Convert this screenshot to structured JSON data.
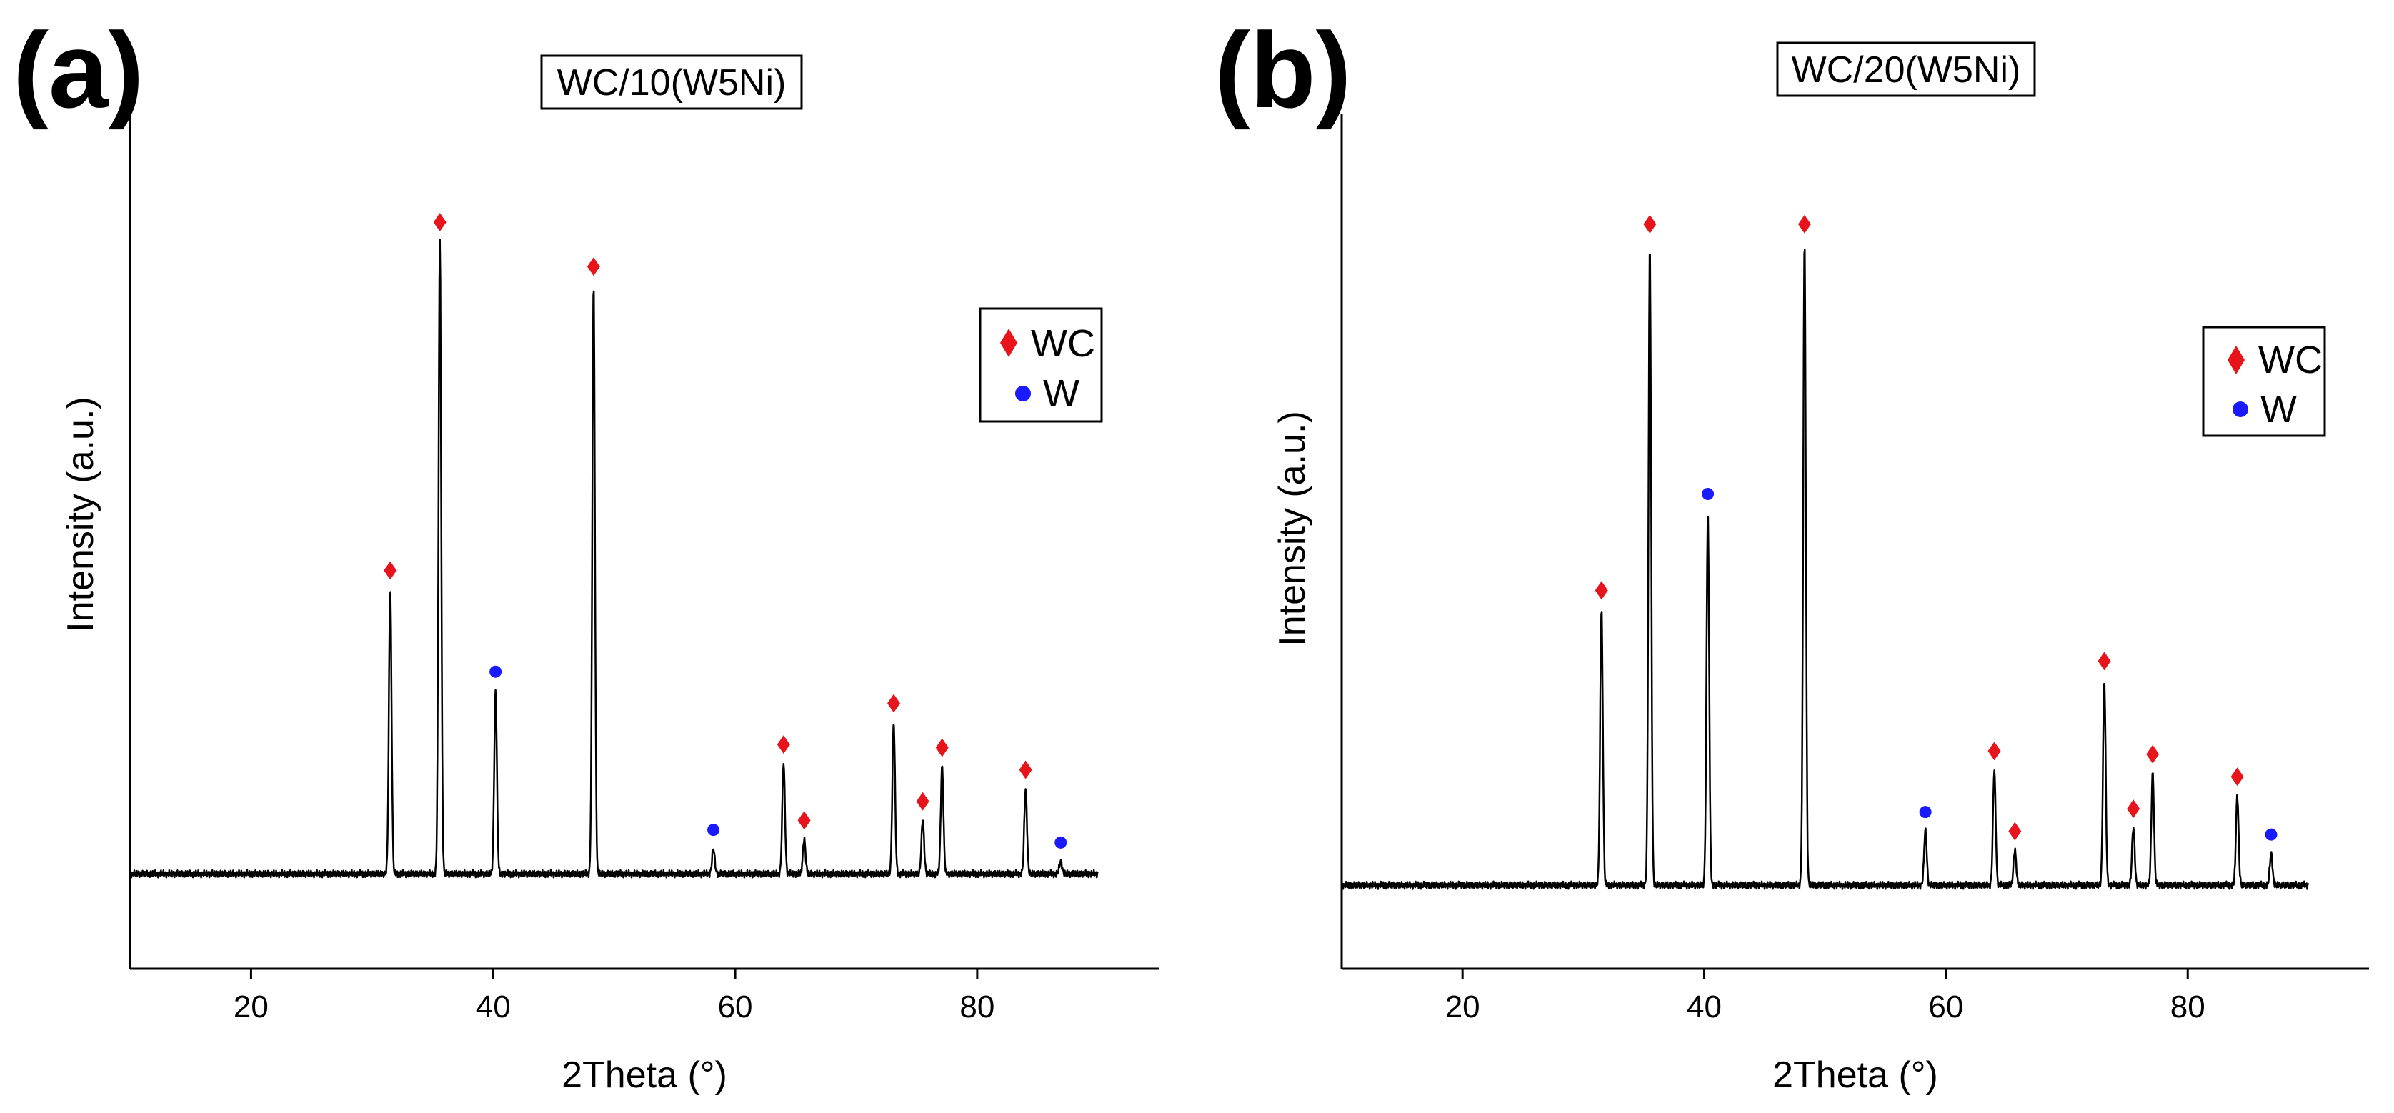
{
  "chart_data": [
    {
      "type": "line",
      "panel_label": "(a)",
      "title": "WC/10(W5Ni)",
      "xlabel": "2Theta (°)",
      "ylabel": "Intensity (a.u.)",
      "xlim": [
        10,
        95
      ],
      "ylim": [
        -15,
        120
      ],
      "xticks": [
        20,
        40,
        60,
        80
      ],
      "xtick_labels": [
        "20",
        "40",
        "60",
        "80"
      ],
      "x_range": [
        10,
        90
      ],
      "baseline": 0,
      "legend": {
        "position": "right",
        "entries": [
          {
            "label": "WC",
            "marker": "diamond",
            "color": "#e8141c"
          },
          {
            "label": "W",
            "marker": "circle",
            "color": "#1a1aff"
          }
        ]
      },
      "peaks": [
        {
          "x": 31.5,
          "height": 45,
          "phase": "WC"
        },
        {
          "x": 35.6,
          "height": 100,
          "phase": "WC"
        },
        {
          "x": 40.2,
          "height": 29,
          "phase": "W"
        },
        {
          "x": 48.3,
          "height": 93,
          "phase": "WC"
        },
        {
          "x": 58.2,
          "height": 4,
          "phase": "W"
        },
        {
          "x": 64.0,
          "height": 17.5,
          "phase": "WC"
        },
        {
          "x": 65.7,
          "height": 5.5,
          "phase": "WC"
        },
        {
          "x": 73.1,
          "height": 24,
          "phase": "WC"
        },
        {
          "x": 75.5,
          "height": 8.5,
          "phase": "WC"
        },
        {
          "x": 77.1,
          "height": 17,
          "phase": "WC"
        },
        {
          "x": 84.0,
          "height": 13.5,
          "phase": "WC"
        },
        {
          "x": 86.9,
          "height": 2,
          "phase": "W"
        }
      ]
    },
    {
      "type": "line",
      "panel_label": "(b)",
      "title": "WC/20(W5Ni)",
      "xlabel": "2Theta (°)",
      "ylabel": "Intensity (a.u.)",
      "xlim": [
        10,
        95
      ],
      "ylim": [
        -13,
        120
      ],
      "xticks": [
        20,
        40,
        60,
        80
      ],
      "xtick_labels": [
        "20",
        "40",
        "60",
        "80"
      ],
      "x_range": [
        10,
        90
      ],
      "baseline": 0,
      "legend": {
        "position": "right",
        "entries": [
          {
            "label": "WC",
            "marker": "diamond",
            "color": "#e8141c"
          },
          {
            "label": "W",
            "marker": "circle",
            "color": "#1a1aff"
          }
        ]
      },
      "peaks": [
        {
          "x": 31.5,
          "height": 43,
          "phase": "WC"
        },
        {
          "x": 35.5,
          "height": 100,
          "phase": "WC"
        },
        {
          "x": 40.3,
          "height": 58,
          "phase": "W"
        },
        {
          "x": 48.3,
          "height": 100,
          "phase": "WC"
        },
        {
          "x": 58.3,
          "height": 8.5,
          "phase": "W"
        },
        {
          "x": 64.0,
          "height": 18,
          "phase": "WC"
        },
        {
          "x": 65.7,
          "height": 5.5,
          "phase": "WC"
        },
        {
          "x": 73.1,
          "height": 32,
          "phase": "WC"
        },
        {
          "x": 75.5,
          "height": 9,
          "phase": "WC"
        },
        {
          "x": 77.1,
          "height": 17.5,
          "phase": "WC"
        },
        {
          "x": 84.1,
          "height": 14,
          "phase": "WC"
        },
        {
          "x": 86.9,
          "height": 5,
          "phase": "W"
        }
      ]
    }
  ]
}
